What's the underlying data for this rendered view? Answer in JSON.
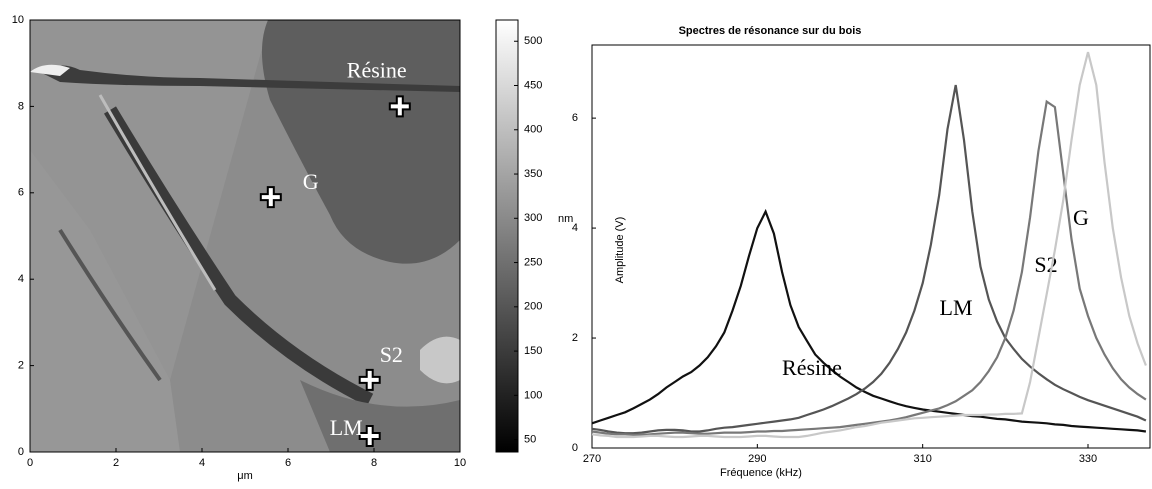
{
  "chart_data": [
    {
      "type": "image",
      "xlabel": "μm",
      "xlim": [
        0,
        10
      ],
      "xticks": [
        0,
        2,
        4,
        6,
        8,
        10
      ],
      "ylim": [
        0,
        10
      ],
      "yticks": [
        0,
        2,
        4,
        6,
        8,
        10
      ],
      "colorbar": {
        "label": "nm",
        "clim": [
          36,
          524
        ],
        "ticks": [
          50,
          100,
          150,
          200,
          250,
          300,
          350,
          400,
          450,
          500
        ]
      },
      "annotations": [
        {
          "text": "Résine",
          "x": 8.6,
          "y": 8.0
        },
        {
          "text": "G",
          "x": 5.6,
          "y": 5.9
        },
        {
          "text": "S2",
          "x": 7.9,
          "y": 1.67
        },
        {
          "text": "LM",
          "x": 7.9,
          "y": 0.37
        }
      ]
    },
    {
      "type": "line",
      "title": "Spectres de résonance sur du bois",
      "xlabel": "Fréquence (kHz)",
      "ylabel": "Amplitude (V)",
      "xlim": [
        270,
        337.5
      ],
      "xticks": [
        270,
        290,
        310,
        330
      ],
      "ylim": [
        0,
        7.33
      ],
      "yticks": [
        0,
        2,
        4,
        6
      ],
      "x": [
        270,
        271,
        272,
        273,
        274,
        275,
        276,
        277,
        278,
        279,
        280,
        281,
        282,
        283,
        284,
        285,
        286,
        287,
        288,
        289,
        290,
        291,
        292,
        293,
        294,
        295,
        296,
        297,
        298,
        299,
        300,
        301,
        302,
        303,
        304,
        305,
        306,
        307,
        308,
        309,
        310,
        311,
        312,
        313,
        314,
        315,
        316,
        317,
        318,
        319,
        320,
        321,
        322,
        323,
        324,
        325,
        326,
        327,
        328,
        329,
        330,
        331,
        332,
        333,
        334,
        335,
        336,
        337
      ],
      "series": [
        {
          "name": "Résine",
          "color": "#111111",
          "values": [
            0.45,
            0.5,
            0.55,
            0.6,
            0.65,
            0.72,
            0.8,
            0.88,
            0.98,
            1.1,
            1.2,
            1.3,
            1.38,
            1.5,
            1.65,
            1.85,
            2.1,
            2.5,
            2.95,
            3.5,
            4.0,
            4.3,
            3.9,
            3.2,
            2.6,
            2.2,
            1.95,
            1.7,
            1.55,
            1.42,
            1.3,
            1.2,
            1.1,
            1.02,
            0.95,
            0.9,
            0.85,
            0.8,
            0.76,
            0.73,
            0.7,
            0.68,
            0.66,
            0.64,
            0.62,
            0.6,
            0.58,
            0.57,
            0.55,
            0.53,
            0.52,
            0.5,
            0.48,
            0.47,
            0.46,
            0.45,
            0.43,
            0.42,
            0.4,
            0.39,
            0.38,
            0.37,
            0.36,
            0.35,
            0.34,
            0.33,
            0.32,
            0.3
          ]
        },
        {
          "name": "LM",
          "color": "#555555",
          "values": [
            0.35,
            0.33,
            0.3,
            0.28,
            0.27,
            0.27,
            0.28,
            0.3,
            0.32,
            0.33,
            0.33,
            0.32,
            0.3,
            0.3,
            0.32,
            0.35,
            0.37,
            0.38,
            0.4,
            0.42,
            0.44,
            0.46,
            0.48,
            0.5,
            0.52,
            0.55,
            0.6,
            0.65,
            0.7,
            0.76,
            0.83,
            0.9,
            0.98,
            1.08,
            1.2,
            1.35,
            1.55,
            1.8,
            2.1,
            2.5,
            3.0,
            3.7,
            4.6,
            5.8,
            6.6,
            5.6,
            4.3,
            3.3,
            2.7,
            2.3,
            2.0,
            1.8,
            1.62,
            1.48,
            1.36,
            1.25,
            1.15,
            1.07,
            1.0,
            0.93,
            0.87,
            0.82,
            0.77,
            0.72,
            0.67,
            0.62,
            0.57,
            0.5
          ]
        },
        {
          "name": "S2",
          "color": "#787878",
          "values": [
            0.3,
            0.28,
            0.26,
            0.25,
            0.25,
            0.24,
            0.24,
            0.25,
            0.26,
            0.27,
            0.28,
            0.28,
            0.27,
            0.26,
            0.26,
            0.27,
            0.28,
            0.28,
            0.28,
            0.29,
            0.3,
            0.3,
            0.31,
            0.31,
            0.32,
            0.33,
            0.34,
            0.35,
            0.36,
            0.37,
            0.38,
            0.4,
            0.42,
            0.44,
            0.46,
            0.48,
            0.5,
            0.53,
            0.56,
            0.6,
            0.64,
            0.68,
            0.72,
            0.78,
            0.85,
            0.95,
            1.05,
            1.2,
            1.4,
            1.65,
            2.0,
            2.5,
            3.2,
            4.2,
            5.4,
            6.3,
            6.2,
            5.0,
            3.8,
            2.9,
            2.4,
            2.0,
            1.7,
            1.45,
            1.25,
            1.1,
            0.98,
            0.88
          ]
        },
        {
          "name": "G",
          "color": "#c8c8c8",
          "values": [
            0.25,
            0.23,
            0.22,
            0.2,
            0.2,
            0.2,
            0.21,
            0.22,
            0.22,
            0.21,
            0.2,
            0.2,
            0.21,
            0.22,
            0.22,
            0.21,
            0.2,
            0.2,
            0.2,
            0.21,
            0.22,
            0.22,
            0.21,
            0.2,
            0.2,
            0.2,
            0.22,
            0.25,
            0.28,
            0.3,
            0.32,
            0.35,
            0.38,
            0.4,
            0.43,
            0.46,
            0.48,
            0.5,
            0.52,
            0.54,
            0.55,
            0.56,
            0.57,
            0.58,
            0.59,
            0.6,
            0.6,
            0.6,
            0.61,
            0.61,
            0.62,
            0.62,
            0.63,
            1.2,
            2.0,
            2.8,
            3.6,
            4.5,
            5.6,
            6.6,
            7.2,
            6.6,
            5.2,
            4.0,
            3.1,
            2.4,
            1.9,
            1.5
          ]
        }
      ]
    }
  ]
}
